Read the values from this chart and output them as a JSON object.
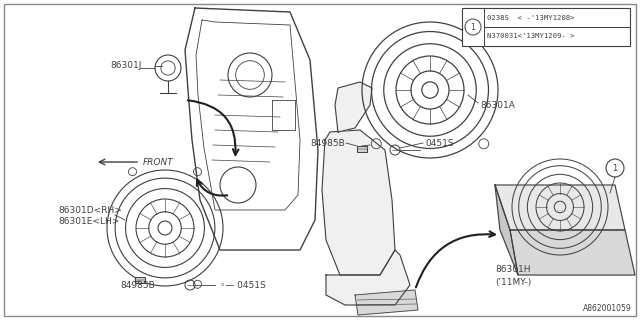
{
  "background_color": "#ffffff",
  "diagram_color": "#404040",
  "part_number_bottom": "A862001059",
  "table_row1": "0238S  < -'13MY1208>",
  "table_row2": "N370031<'13MY1209- >"
}
